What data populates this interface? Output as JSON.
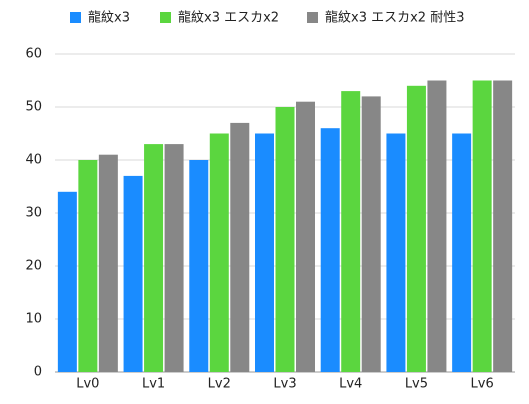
{
  "chart_data": {
    "type": "grouped_bar",
    "categories": [
      "Lv0",
      "Lv1",
      "Lv2",
      "Lv3",
      "Lv4",
      "Lv5",
      "Lv6"
    ],
    "series": [
      {
        "name": "龍紋x3",
        "color": "#1a8cff",
        "values": [
          34,
          37,
          40,
          45,
          46,
          45,
          45
        ]
      },
      {
        "name": "龍紋x3 エスカx2",
        "color": "#5bd63f",
        "values": [
          40,
          43,
          45,
          50,
          53,
          54,
          55
        ]
      },
      {
        "name": "龍紋x3 エスカx2 耐性3",
        "color": "#878787",
        "values": [
          41,
          43,
          47,
          51,
          52,
          55,
          55
        ]
      }
    ],
    "ylim": [
      0,
      60
    ],
    "yticks": [
      0,
      10,
      20,
      30,
      40,
      50,
      60
    ],
    "grid": true,
    "legend": "top"
  }
}
